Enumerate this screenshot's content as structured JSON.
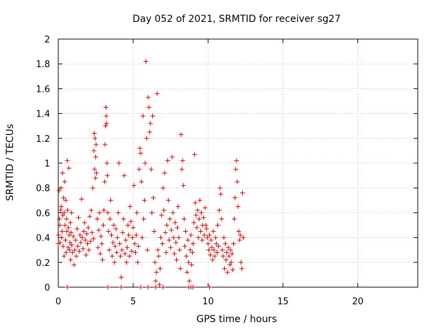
{
  "chart_data": {
    "type": "scatter",
    "title": "Day 052 of 2021, SRMTID for receiver sg27",
    "xlabel": "GPS time / hours",
    "ylabel": "SRMTID / TECUs",
    "xlim": [
      0,
      24
    ],
    "ylim": [
      0,
      2
    ],
    "xticks": [
      0,
      5,
      10,
      15,
      20
    ],
    "yticks": [
      0,
      0.2,
      0.4,
      0.6,
      0.8,
      1,
      1.2,
      1.4,
      1.6,
      1.8,
      2
    ],
    "xtick_labels": [
      "0",
      "5",
      "10",
      "15",
      "20"
    ],
    "ytick_labels": [
      "0",
      "0.2",
      "0.4",
      "0.6",
      "0.8",
      "1",
      "1.2",
      "1.4",
      "1.6",
      "1.8",
      "2"
    ],
    "grid": true,
    "marker": "+",
    "color": "#e00000",
    "series": [
      {
        "name": "sg27",
        "points": [
          [
            0.0,
            0.35
          ],
          [
            0.02,
            0.42
          ],
          [
            0.05,
            0.78
          ],
          [
            0.08,
            0.55
          ],
          [
            0.1,
            0.5
          ],
          [
            0.12,
            0.36
          ],
          [
            0.15,
            0.62
          ],
          [
            0.18,
            0.8
          ],
          [
            0.2,
            0.65
          ],
          [
            0.22,
            0.4
          ],
          [
            0.25,
            0.45
          ],
          [
            0.28,
            0.92
          ],
          [
            0.3,
            0.58
          ],
          [
            0.32,
            0.33
          ],
          [
            0.35,
            0.72
          ],
          [
            0.38,
            0.25
          ],
          [
            0.4,
            0.6
          ],
          [
            0.42,
            0.85
          ],
          [
            0.45,
            0.5
          ],
          [
            0.48,
            0.38
          ],
          [
            0.5,
            0.7
          ],
          [
            0.52,
            0.28
          ],
          [
            0.55,
            0.55
          ],
          [
            0.58,
            0.45
          ],
          [
            0.6,
            1.02
          ],
          [
            0.62,
            0.62
          ],
          [
            0.65,
            0.32
          ],
          [
            0.68,
            0.48
          ],
          [
            0.7,
            0.96
          ],
          [
            0.72,
            0.42
          ],
          [
            0.75,
            0.3
          ],
          [
            0.78,
            0.36
          ],
          [
            0.8,
            0.52
          ],
          [
            0.82,
            0.22
          ],
          [
            0.85,
            0.44
          ],
          [
            0.88,
            0.6
          ],
          [
            0.9,
            0.34
          ],
          [
            0.95,
            0.28
          ],
          [
            1.0,
            0.41
          ],
          [
            1.05,
            0.18
          ],
          [
            1.1,
            0.3
          ],
          [
            1.15,
            0.38
          ],
          [
            1.2,
            0.25
          ],
          [
            1.25,
            0.47
          ],
          [
            1.3,
            0.33
          ],
          [
            1.35,
            0.56
          ],
          [
            1.4,
            0.29
          ],
          [
            1.45,
            0.42
          ],
          [
            1.5,
            0.36
          ],
          [
            1.55,
            0.71
          ],
          [
            1.6,
            0.4
          ],
          [
            1.65,
            0.31
          ],
          [
            1.7,
            0.45
          ],
          [
            1.75,
            0.52
          ],
          [
            1.8,
            0.38
          ],
          [
            1.85,
            0.26
          ],
          [
            1.9,
            0.43
          ],
          [
            1.95,
            0.35
          ],
          [
            2.0,
            0.48
          ],
          [
            2.05,
            0.3
          ],
          [
            2.1,
            0.57
          ],
          [
            2.15,
            0.37
          ],
          [
            2.2,
            0.62
          ],
          [
            2.25,
            0.44
          ],
          [
            2.3,
            0.8
          ],
          [
            2.35,
            0.39
          ],
          [
            2.38,
            1.1
          ],
          [
            2.4,
            1.24
          ],
          [
            2.42,
            0.95
          ],
          [
            2.45,
            1.2
          ],
          [
            2.48,
            0.88
          ],
          [
            2.5,
            1.05
          ],
          [
            2.52,
            1.15
          ],
          [
            2.55,
            0.92
          ],
          [
            2.6,
            0.55
          ],
          [
            2.65,
            0.32
          ],
          [
            2.7,
            0.46
          ],
          [
            2.75,
            0.6
          ],
          [
            2.8,
            0.27
          ],
          [
            2.85,
            0.41
          ],
          [
            2.9,
            0.35
          ],
          [
            2.95,
            0.22
          ],
          [
            3.0,
            0.5
          ],
          [
            3.05,
            0.62
          ],
          [
            3.1,
            0.85
          ],
          [
            3.12,
            1.15
          ],
          [
            3.15,
            1.3
          ],
          [
            3.18,
            1.45
          ],
          [
            3.2,
            1.38
          ],
          [
            3.22,
            1.32
          ],
          [
            3.25,
            1.0
          ],
          [
            3.28,
            0.9
          ],
          [
            3.3,
            0.6
          ],
          [
            3.35,
            0.45
          ],
          [
            3.4,
            0.3
          ],
          [
            3.45,
            0.55
          ],
          [
            3.5,
            0.7
          ],
          [
            3.55,
            0.42
          ],
          [
            3.6,
            0.25
          ],
          [
            3.65,
            0.36
          ],
          [
            3.7,
            0.5
          ],
          [
            3.75,
            0.2
          ],
          [
            3.8,
            0.33
          ],
          [
            3.85,
            0.47
          ],
          [
            3.9,
            0.28
          ],
          [
            3.95,
            0.4
          ],
          [
            4.0,
            0.6
          ],
          [
            4.05,
            1.0
          ],
          [
            4.1,
            0.35
          ],
          [
            4.15,
            0.25
          ],
          [
            4.2,
            0.08
          ],
          [
            4.25,
            0.3
          ],
          [
            4.3,
            0.44
          ],
          [
            4.35,
            0.55
          ],
          [
            4.4,
            0.9
          ],
          [
            4.45,
            0.27
          ],
          [
            4.5,
            0.38
          ],
          [
            4.55,
            0.2
          ],
          [
            4.6,
            0.32
          ],
          [
            4.65,
            0.5
          ],
          [
            4.7,
            0.42
          ],
          [
            4.75,
            0.25
          ],
          [
            4.8,
            0.65
          ],
          [
            4.85,
            0.53
          ],
          [
            4.9,
            0.29
          ],
          [
            4.95,
            0.4
          ],
          [
            5.0,
            0.48
          ],
          [
            5.05,
            0.82
          ],
          [
            5.1,
            0.35
          ],
          [
            5.15,
            0.28
          ],
          [
            5.2,
            0.42
          ],
          [
            5.25,
            0.6
          ],
          [
            5.3,
            0.2
          ],
          [
            5.35,
            0.33
          ],
          [
            5.4,
            0.95
          ],
          [
            5.45,
            1.12
          ],
          [
            5.5,
            1.08
          ],
          [
            5.55,
            0.85
          ],
          [
            5.6,
            0.4
          ],
          [
            5.65,
            1.38
          ],
          [
            5.7,
            0.55
          ],
          [
            5.75,
            0.7
          ],
          [
            5.8,
            1.0
          ],
          [
            5.85,
            1.82
          ],
          [
            5.9,
            1.2
          ],
          [
            5.95,
            0.3
          ],
          [
            6.0,
            1.53
          ],
          [
            6.05,
            1.45
          ],
          [
            6.1,
            1.25
          ],
          [
            6.15,
            1.32
          ],
          [
            6.2,
            0.95
          ],
          [
            6.25,
            0.6
          ],
          [
            6.3,
            1.38
          ],
          [
            6.35,
            0.72
          ],
          [
            6.4,
            0.45
          ],
          [
            6.45,
            0.2
          ],
          [
            6.5,
            0.05
          ],
          [
            6.55,
            0.12
          ],
          [
            6.6,
            1.56
          ],
          [
            6.65,
            0.3
          ],
          [
            6.7,
            0.25
          ],
          [
            6.75,
            0.02
          ],
          [
            6.8,
            0.15
          ],
          [
            6.85,
            0.4
          ],
          [
            6.9,
            0.58
          ],
          [
            6.95,
            0.35
          ],
          [
            7.0,
            0.8
          ],
          [
            7.05,
            0.62
          ],
          [
            7.1,
            0.92
          ],
          [
            7.15,
            0.44
          ],
          [
            7.2,
            0.28
          ],
          [
            7.25,
            0.5
          ],
          [
            7.3,
            1.02
          ],
          [
            7.35,
            0.7
          ],
          [
            7.4,
            0.38
          ],
          [
            7.45,
            0.55
          ],
          [
            7.5,
            0.32
          ],
          [
            7.55,
            0.46
          ],
          [
            7.6,
            1.05
          ],
          [
            7.65,
            0.6
          ],
          [
            7.7,
            0.4
          ],
          [
            7.75,
            0.27
          ],
          [
            7.8,
            0.52
          ],
          [
            7.85,
            0.36
          ],
          [
            7.9,
            0.22
          ],
          [
            7.95,
            0.48
          ],
          [
            8.0,
            0.65
          ],
          [
            8.05,
            0.4
          ],
          [
            8.1,
            0.3
          ],
          [
            8.15,
            0.15
          ],
          [
            8.2,
            1.23
          ],
          [
            8.25,
            0.95
          ],
          [
            8.3,
            1.02
          ],
          [
            8.35,
            0.82
          ],
          [
            8.4,
            0.55
          ],
          [
            8.45,
            0.33
          ],
          [
            8.5,
            0.45
          ],
          [
            8.55,
            0.25
          ],
          [
            8.6,
            0.12
          ],
          [
            8.65,
            0.38
          ],
          [
            8.7,
            0.2
          ],
          [
            8.75,
            0.05
          ],
          [
            8.8,
            0.3
          ],
          [
            8.85,
            0.42
          ],
          [
            8.9,
            0.18
          ],
          [
            8.95,
            0.28
          ],
          [
            9.0,
            0.35
          ],
          [
            9.05,
            0.52
          ],
          [
            9.1,
            1.07
          ],
          [
            9.15,
            0.68
          ],
          [
            9.2,
            0.58
          ],
          [
            9.25,
            0.48
          ],
          [
            9.3,
            0.62
          ],
          [
            9.35,
            0.4
          ],
          [
            9.4,
            0.55
          ],
          [
            9.45,
            0.7
          ],
          [
            9.5,
            0.45
          ],
          [
            9.55,
            0.6
          ],
          [
            9.6,
            0.38
          ],
          [
            9.65,
            0.5
          ],
          [
            9.7,
            0.56
          ],
          [
            9.75,
            0.42
          ],
          [
            9.8,
            0.64
          ],
          [
            9.85,
            0.5
          ],
          [
            9.9,
            0.47
          ],
          [
            9.95,
            0.4
          ],
          [
            10.0,
            0.35
          ],
          [
            10.05,
            0.3
          ],
          [
            10.1,
            0.42
          ],
          [
            10.15,
            0.26
          ],
          [
            10.2,
            0.38
          ],
          [
            10.25,
            0.32
          ],
          [
            10.3,
            0.22
          ],
          [
            10.35,
            0.45
          ],
          [
            10.4,
            0.3
          ],
          [
            10.45,
            0.25
          ],
          [
            10.5,
            0.4
          ],
          [
            10.55,
            0.35
          ],
          [
            10.6,
            0.28
          ],
          [
            10.65,
            0.5
          ],
          [
            10.7,
            0.33
          ],
          [
            10.75,
            0.62
          ],
          [
            10.8,
            0.8
          ],
          [
            10.85,
            0.75
          ],
          [
            10.9,
            0.55
          ],
          [
            10.95,
            0.3
          ],
          [
            11.0,
            0.25
          ],
          [
            11.05,
            0.4
          ],
          [
            11.1,
            0.15
          ],
          [
            11.15,
            0.35
          ],
          [
            11.2,
            0.22
          ],
          [
            11.25,
            0.28
          ],
          [
            11.3,
            0.12
          ],
          [
            11.35,
            0.32
          ],
          [
            11.4,
            0.25
          ],
          [
            11.45,
            0.18
          ],
          [
            11.5,
            0.3
          ],
          [
            11.55,
            0.2
          ],
          [
            11.6,
            0.27
          ],
          [
            11.65,
            0.14
          ],
          [
            11.7,
            0.35
          ],
          [
            11.75,
            0.55
          ],
          [
            11.8,
            0.72
          ],
          [
            11.85,
            0.95
          ],
          [
            11.9,
            1.02
          ],
          [
            11.95,
            0.85
          ],
          [
            12.0,
            0.65
          ],
          [
            12.05,
            0.45
          ],
          [
            12.1,
            0.38
          ],
          [
            12.15,
            0.42
          ],
          [
            12.2,
            0.2
          ],
          [
            12.25,
            0.15
          ],
          [
            12.3,
            0.76
          ],
          [
            12.35,
            0.4
          ],
          [
            0.6,
            0.0
          ],
          [
            3.3,
            0.0
          ],
          [
            4.2,
            0.0
          ],
          [
            5.5,
            0.0
          ],
          [
            6.0,
            0.0
          ],
          [
            6.5,
            0.0
          ],
          [
            7.0,
            0.0
          ],
          [
            8.7,
            0.0
          ],
          [
            8.85,
            0.0
          ],
          [
            9.0,
            0.0
          ],
          [
            10.1,
            0.0
          ]
        ]
      }
    ]
  }
}
